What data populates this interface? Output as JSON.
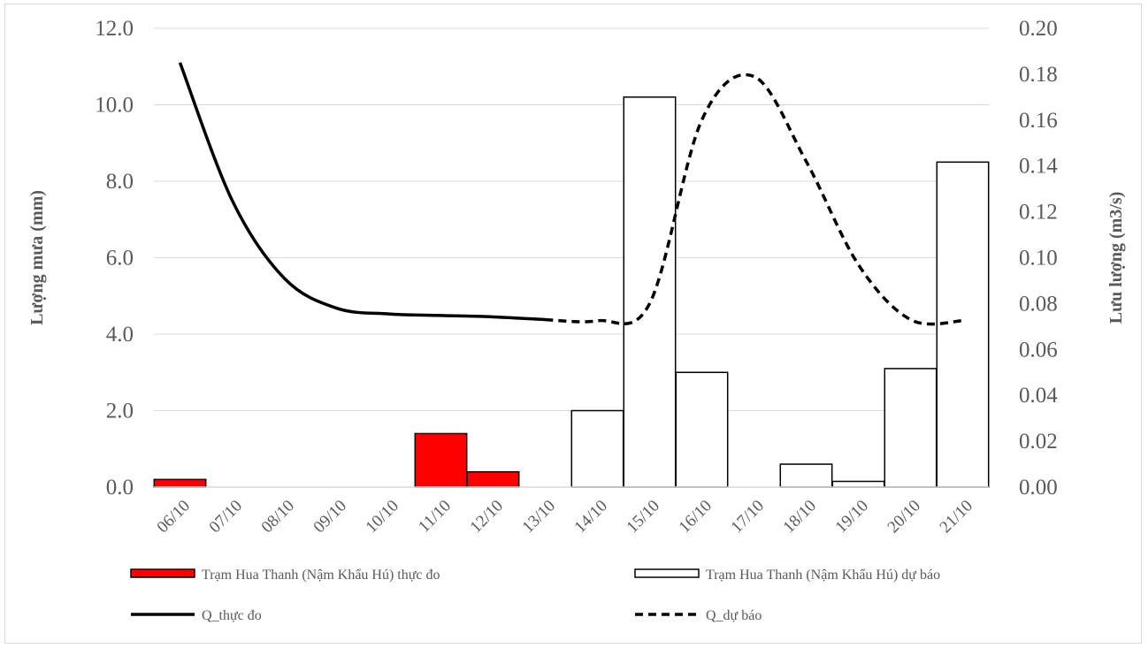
{
  "chart_data": {
    "type": "bar",
    "categories": [
      "06/10",
      "07/10",
      "08/10",
      "09/10",
      "10/10",
      "11/10",
      "12/10",
      "13/10",
      "14/10",
      "15/10",
      "16/10",
      "17/10",
      "18/10",
      "19/10",
      "20/10",
      "21/10"
    ],
    "y_left": {
      "label": "Lượng mưa (mm)",
      "ylim": [
        0,
        12
      ],
      "ticks": [
        "0.0",
        "2.0",
        "4.0",
        "6.0",
        "8.0",
        "10.0",
        "12.0"
      ]
    },
    "y_right": {
      "label": "Lưu lượng (m3/s)",
      "ylim": [
        0,
        0.2
      ],
      "ticks": [
        "0.00",
        "0.02",
        "0.04",
        "0.06",
        "0.08",
        "0.10",
        "0.12",
        "0.14",
        "0.16",
        "0.18",
        "0.20"
      ]
    },
    "series": [
      {
        "name": "Trạm Hua Thanh (Nậm Khẩu Hú) thực đo",
        "kind": "bar",
        "axis": "left",
        "fill": "#ff0000",
        "values": [
          0.2,
          0,
          0,
          0,
          0,
          1.4,
          0.4,
          0,
          null,
          null,
          null,
          null,
          null,
          null,
          null,
          null
        ]
      },
      {
        "name": "Trạm Hua Thanh (Nậm Khẩu Hú) dự báo",
        "kind": "bar",
        "axis": "left",
        "fill": "#ffffff",
        "values": [
          null,
          null,
          null,
          null,
          null,
          null,
          null,
          null,
          2.0,
          10.2,
          3.0,
          0,
          0.6,
          0.15,
          3.1,
          8.5
        ]
      },
      {
        "name": "Q_thực đo",
        "kind": "line",
        "axis": "right",
        "dash": "solid",
        "values": [
          0.185,
          0.125,
          0.091,
          0.078,
          0.0755,
          0.0748,
          0.0742,
          0.073,
          null,
          null,
          null,
          null,
          null,
          null,
          null,
          null
        ]
      },
      {
        "name": "Q_dự báo",
        "kind": "line",
        "axis": "right",
        "dash": "dashed",
        "values": [
          null,
          null,
          null,
          null,
          null,
          null,
          null,
          0.073,
          0.0725,
          0.08,
          0.16,
          0.179,
          0.142,
          0.097,
          0.073,
          0.0725
        ]
      }
    ],
    "grid": true,
    "legend_position": "bottom"
  }
}
